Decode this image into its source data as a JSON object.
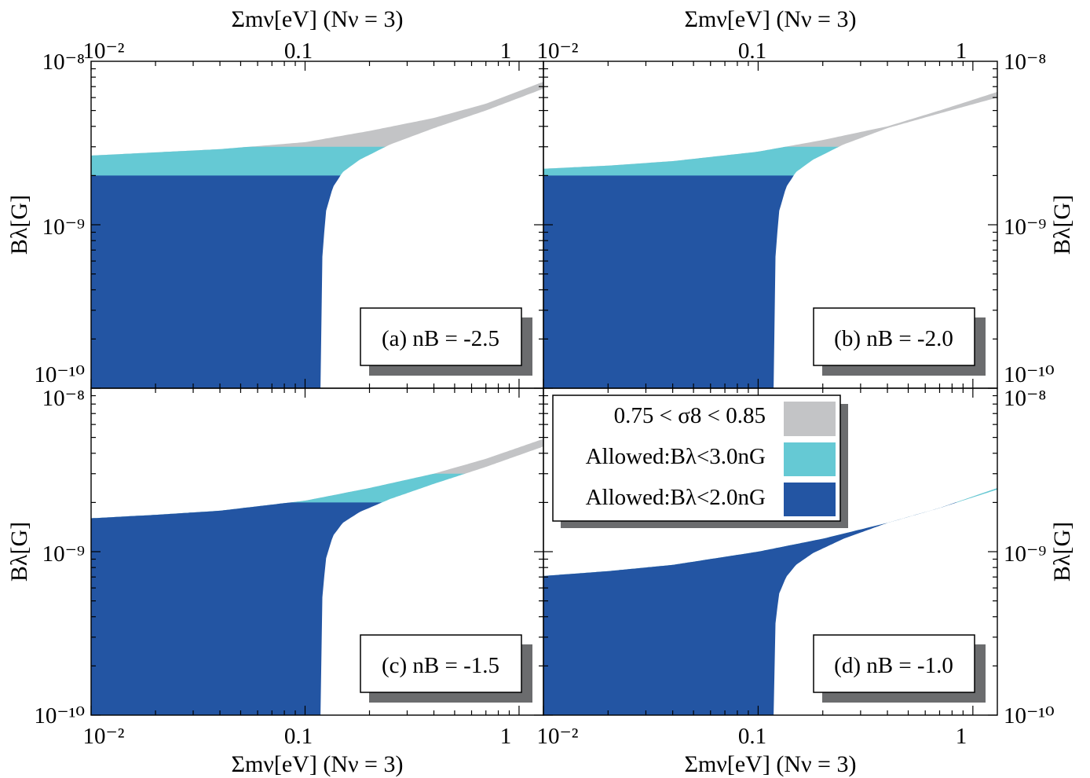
{
  "axis_text": {
    "x_top": "Σmν[eV] (Nν = 3)",
    "x_bottom": "Σmν[eV] (Nν = 3)",
    "y": "Bλ[G]",
    "x_ticks": [
      "10⁻²",
      "0.1",
      "1"
    ],
    "y_ticks": [
      "10⁻⁸",
      "10⁻⁹",
      "10⁻¹⁰"
    ]
  },
  "legend": {
    "items": [
      {
        "label": "0.75 < σ8 < 0.85",
        "color": "#c3c4c6"
      },
      {
        "label": "Allowed:Bλ<3.0nG",
        "color": "#65c9d4"
      },
      {
        "label": "Allowed:Bλ<2.0nG",
        "color": "#2355a3"
      }
    ]
  },
  "colors": {
    "sigma8_band": "#c3c4c6",
    "allowed_3nG": "#65c9d4",
    "allowed_2nG": "#2355a3",
    "shadow": "#6b6c6e"
  },
  "chart_data": [
    {
      "type": "area",
      "panel_label": "(a) nB = -2.5",
      "xscale": "log",
      "yscale": "log",
      "xlim": [
        0.01,
        1.3
      ],
      "ylim": [
        1e-10,
        1e-08
      ],
      "gray_band": {
        "x": [
          0.01,
          0.04,
          0.1,
          0.2,
          0.4,
          0.7,
          1.3
        ],
        "y_upper": [
          2.65e-09,
          2.9e-09,
          3.2e-09,
          3.75e-09,
          4.5e-09,
          5.5e-09,
          7.5e-09
        ]
      },
      "cyan_cap_nG": 3.0,
      "blue_cap_nG": 2.0,
      "boundary_curve": {
        "x": [
          0.118,
          0.12,
          0.125,
          0.135,
          0.15,
          0.18,
          0.25,
          0.4,
          0.7,
          1.3
        ],
        "y": [
          1e-10,
          6e-10,
          1.2e-09,
          1.7e-09,
          2.1e-09,
          2.5e-09,
          3.1e-09,
          3.9e-09,
          5e-09,
          6.8e-09
        ]
      }
    },
    {
      "type": "area",
      "panel_label": "(b) nB = -2.0",
      "xscale": "log",
      "yscale": "log",
      "xlim": [
        0.01,
        1.3
      ],
      "ylim": [
        1e-10,
        1e-08
      ],
      "gray_band": {
        "x": [
          0.01,
          0.02,
          0.04,
          0.1,
          0.2,
          0.4,
          0.7,
          1.3
        ],
        "y_upper": [
          2.2e-09,
          2.3e-09,
          2.45e-09,
          2.8e-09,
          3.3e-09,
          4e-09,
          5e-09,
          6.5e-09
        ]
      },
      "cyan_cap_nG": 3.0,
      "blue_cap_nG": 2.0,
      "boundary_curve": {
        "x": [
          0.118,
          0.12,
          0.125,
          0.135,
          0.15,
          0.18,
          0.25,
          0.4,
          0.7,
          1.3
        ],
        "y": [
          1e-10,
          6e-10,
          1.2e-09,
          1.7e-09,
          2.1e-09,
          2.5e-09,
          3.1e-09,
          3.9e-09,
          4.8e-09,
          6e-09
        ]
      }
    },
    {
      "type": "area",
      "panel_label": "(c) nB = -1.5",
      "xscale": "log",
      "yscale": "log",
      "xlim": [
        0.01,
        1.3
      ],
      "ylim": [
        1e-10,
        1e-08
      ],
      "gray_band": {
        "x": [
          0.01,
          0.02,
          0.04,
          0.1,
          0.2,
          0.4,
          0.7,
          1.3
        ],
        "y_upper": [
          1.6e-09,
          1.68e-09,
          1.78e-09,
          2.05e-09,
          2.45e-09,
          3e-09,
          3.7e-09,
          4.9e-09
        ]
      },
      "cyan_cap_nG": 3.0,
      "blue_cap_nG": 2.0,
      "boundary_curve": {
        "x": [
          0.118,
          0.12,
          0.125,
          0.135,
          0.15,
          0.18,
          0.25,
          0.4,
          0.7,
          1.3
        ],
        "y": [
          1e-10,
          5e-10,
          9e-10,
          1.25e-09,
          1.5e-09,
          1.75e-09,
          2.1e-09,
          2.6e-09,
          3.3e-09,
          4.4e-09
        ]
      }
    },
    {
      "type": "area",
      "panel_label": "(d) nB = -1.0",
      "xscale": "log",
      "yscale": "log",
      "xlim": [
        0.01,
        1.3
      ],
      "ylim": [
        1e-10,
        1e-08
      ],
      "gray_band": {
        "x": [
          0.01,
          0.02,
          0.04,
          0.1,
          0.2,
          0.4,
          0.7,
          1.3
        ],
        "y_upper": [
          7.1e-10,
          7.6e-10,
          8.3e-10,
          1e-09,
          1.2e-09,
          1.5e-09,
          1.85e-09,
          2.45e-09
        ]
      },
      "cyan_cap_nG": 3.0,
      "blue_cap_nG": 2.0,
      "boundary_curve": {
        "x": [
          0.118,
          0.12,
          0.125,
          0.135,
          0.15,
          0.18,
          0.25,
          0.4,
          0.7,
          1.3
        ],
        "y": [
          1e-10,
          3.5e-10,
          5.5e-10,
          7e-10,
          8.3e-10,
          9.8e-10,
          1.2e-09,
          1.5e-09,
          1.85e-09,
          2.4e-09
        ]
      }
    }
  ]
}
